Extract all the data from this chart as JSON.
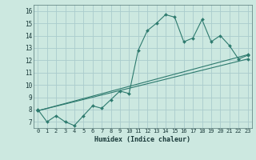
{
  "xlabel": "Humidex (Indice chaleur)",
  "bg_color": "#cce8e0",
  "line_color": "#2d7a6e",
  "grid_color": "#aacccc",
  "xlim": [
    -0.5,
    23.5
  ],
  "ylim": [
    6.5,
    16.5
  ],
  "xticks": [
    0,
    1,
    2,
    3,
    4,
    5,
    6,
    7,
    8,
    9,
    10,
    11,
    12,
    13,
    14,
    15,
    16,
    17,
    18,
    19,
    20,
    21,
    22,
    23
  ],
  "yticks": [
    7,
    8,
    9,
    10,
    11,
    12,
    13,
    14,
    15,
    16
  ],
  "line1_x": [
    0,
    1,
    2,
    3,
    4,
    5,
    6,
    7,
    8,
    9,
    10,
    11,
    12,
    13,
    14,
    15,
    16,
    17,
    18,
    19,
    20,
    21,
    22,
    23
  ],
  "line1_y": [
    8.0,
    7.0,
    7.5,
    7.0,
    6.7,
    7.5,
    8.3,
    8.1,
    8.8,
    9.5,
    9.3,
    12.8,
    14.4,
    15.0,
    15.7,
    15.5,
    13.5,
    13.8,
    15.3,
    13.5,
    14.0,
    13.2,
    12.1,
    12.4
  ],
  "line2_x": [
    0,
    23
  ],
  "line2_y": [
    7.9,
    12.45
  ],
  "line3_x": [
    0,
    23
  ],
  "line3_y": [
    7.9,
    12.1
  ]
}
